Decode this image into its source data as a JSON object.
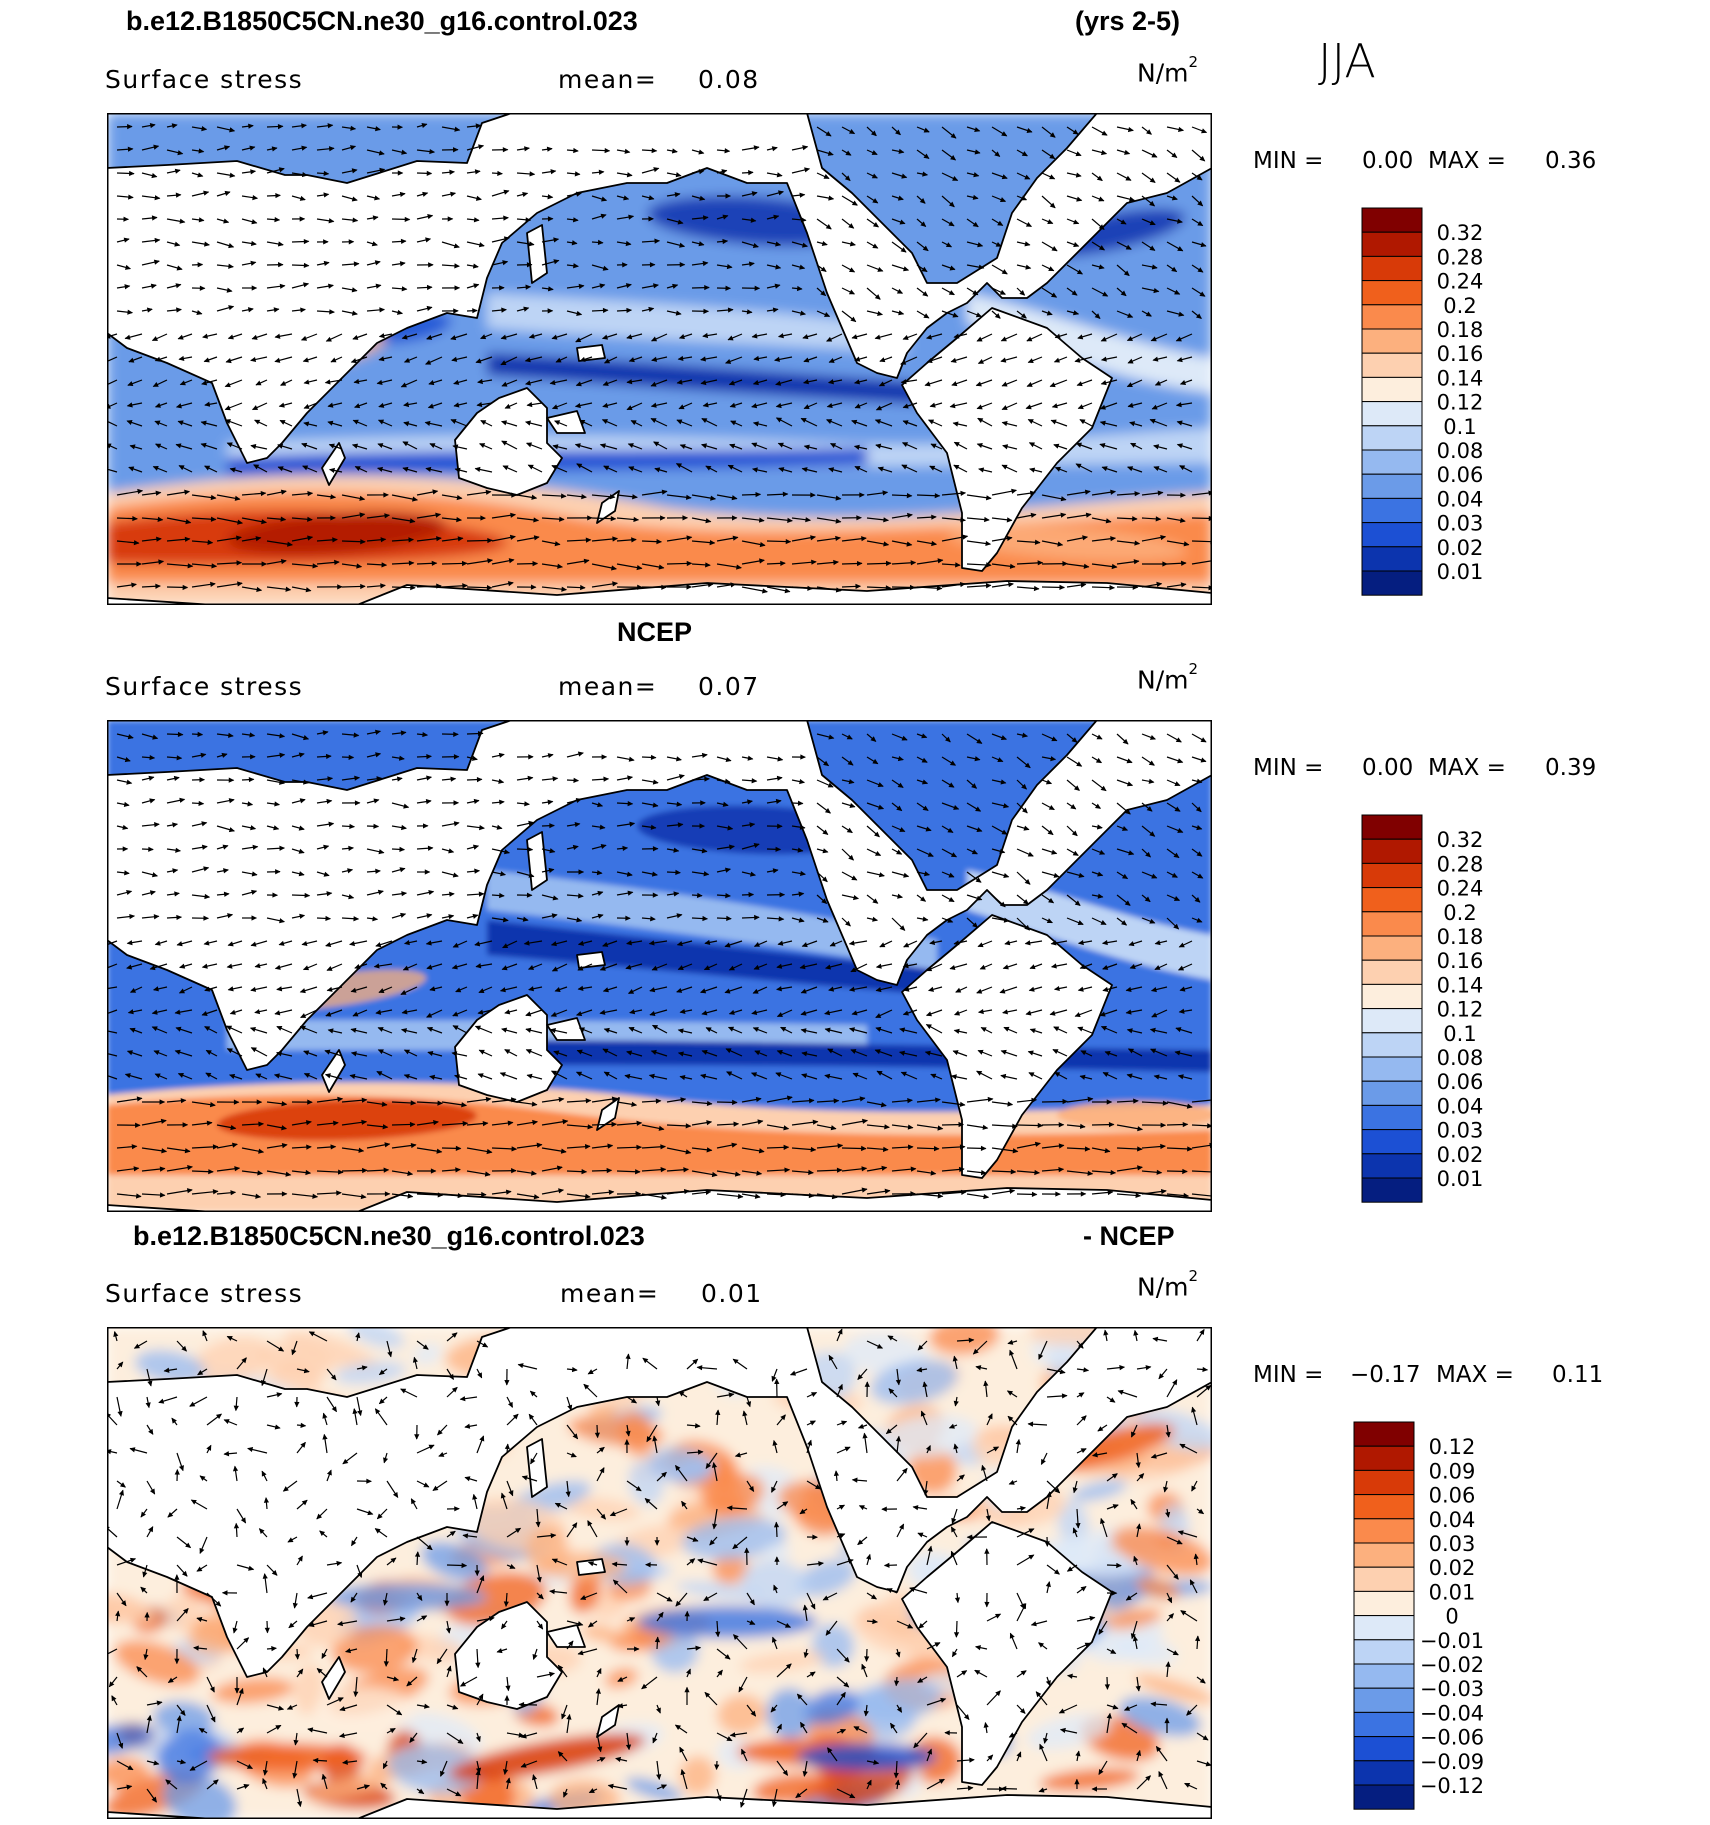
{
  "header": {
    "case_name": "b.e12.B1850C5CN.ne30_g16.control.023",
    "years": "(yrs 2-5)",
    "season": "JJA"
  },
  "panels": [
    {
      "id": "model",
      "title": "",
      "field": "Surface stress",
      "mean_label": "mean=",
      "mean": "0.08",
      "units_base": "N/m",
      "units_exp": "2",
      "min_label": "MIN =",
      "min": "0.00",
      "max_label": "MAX =",
      "max": "0.36",
      "colorbar_labels": [
        "0.32",
        "0.28",
        "0.24",
        "0.2",
        "0.18",
        "0.16",
        "0.14",
        "0.12",
        "0.1",
        "0.08",
        "0.06",
        "0.04",
        "0.03",
        "0.02",
        "0.01"
      ],
      "colorbar_colors": [
        "#800000",
        "#b01800",
        "#d83a08",
        "#f0601c",
        "#fa8a4c",
        "#fcb07e",
        "#fdd0b0",
        "#fdeedd",
        "#dde9f8",
        "#bdd4f5",
        "#95b9f0",
        "#6b9be8",
        "#3b73e2",
        "#1c50d4",
        "#0c34ae",
        "#051e80"
      ],
      "style": "positive"
    },
    {
      "id": "obs",
      "title": "NCEP",
      "field": "Surface stress",
      "mean_label": "mean=",
      "mean": "0.07",
      "units_base": "N/m",
      "units_exp": "2",
      "min_label": "MIN =",
      "min": "0.00",
      "max_label": "MAX =",
      "max": "0.39",
      "colorbar_labels": [
        "0.32",
        "0.28",
        "0.24",
        "0.2",
        "0.18",
        "0.16",
        "0.14",
        "0.12",
        "0.1",
        "0.08",
        "0.06",
        "0.04",
        "0.03",
        "0.02",
        "0.01"
      ],
      "colorbar_colors": [
        "#800000",
        "#b01800",
        "#d83a08",
        "#f0601c",
        "#fa8a4c",
        "#fcb07e",
        "#fdd0b0",
        "#fdeedd",
        "#dde9f8",
        "#bdd4f5",
        "#95b9f0",
        "#6b9be8",
        "#3b73e2",
        "#1c50d4",
        "#0c34ae",
        "#051e80"
      ],
      "style": "positive"
    },
    {
      "id": "diff",
      "title_left": "b.e12.B1850C5CN.ne30_g16.control.023",
      "title_right": "- NCEP",
      "field": "Surface stress",
      "mean_label": "mean=",
      "mean": "0.01",
      "units_base": "N/m",
      "units_exp": "2",
      "min_label": "MIN =",
      "min": "−0.17",
      "max_label": "MAX =",
      "max": "0.11",
      "colorbar_labels": [
        "0.12",
        "0.09",
        "0.06",
        "0.04",
        "0.03",
        "0.02",
        "0.01",
        "0",
        "−0.01",
        "−0.02",
        "−0.03",
        "−0.04",
        "−0.06",
        "−0.09",
        "−0.12"
      ],
      "colorbar_colors": [
        "#800000",
        "#b01800",
        "#d83a08",
        "#f0601c",
        "#fa8a4c",
        "#fcb07e",
        "#fdd0b0",
        "#fdeedd",
        "#dde9f8",
        "#bdd4f5",
        "#95b9f0",
        "#6b9be8",
        "#3b73e2",
        "#1c50d4",
        "#0c34ae",
        "#051e80"
      ],
      "style": "diff"
    }
  ]
}
